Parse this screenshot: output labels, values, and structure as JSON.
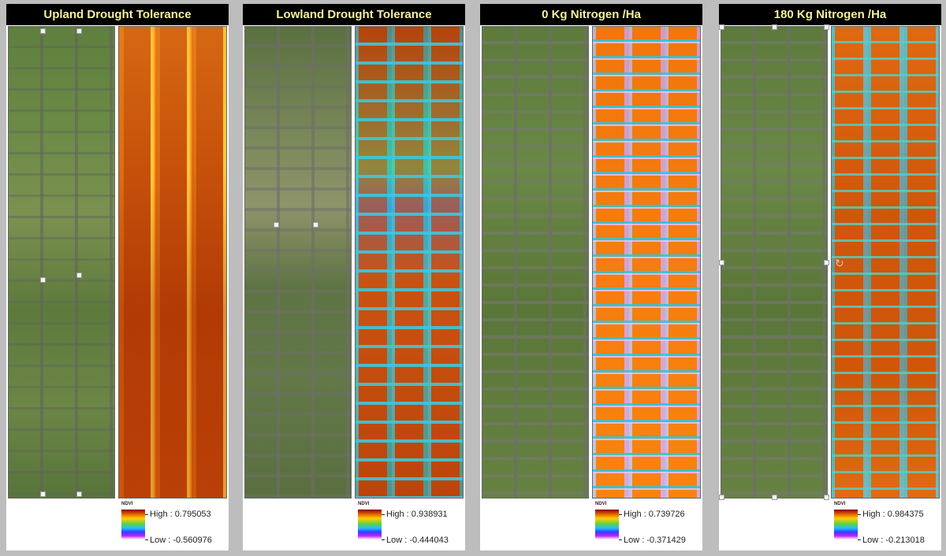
{
  "panels": [
    {
      "title": "Upland Drought Tolerance",
      "legend": {
        "label": "NDVI",
        "high": "High : 0.795053",
        "low": "Low : -0.560976"
      }
    },
    {
      "title": "Lowland Drought Tolerance",
      "legend": {
        "label": "NDVI",
        "high": "High : 0.938931",
        "low": "Low : -0.444043"
      }
    },
    {
      "title": "0 Kg Nitrogen /Ha",
      "legend": {
        "label": "NDVI",
        "high": "High : 0.739726",
        "low": "Low : -0.371429"
      }
    },
    {
      "title": "180 Kg Nitrogen /Ha",
      "legend": {
        "label": "NDVI",
        "high": "High : 0.984375",
        "low": "Low : -0.213018"
      }
    }
  ],
  "colors": {
    "title_bg": "#000000",
    "title_text": "#f5f0a0",
    "divider": "#bdbdbd"
  }
}
